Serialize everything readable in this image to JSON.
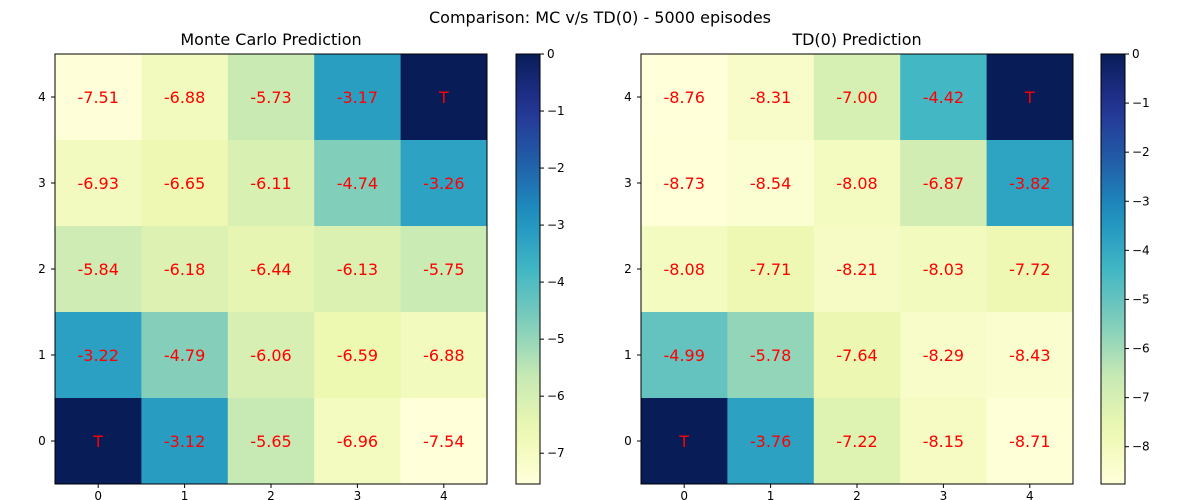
{
  "figure": {
    "title": "Comparison: MC v/s TD(0) - 5000 episodes"
  },
  "chart_data": [
    {
      "type": "heatmap",
      "title": "Monte Carlo Prediction",
      "colormap": "YlGnBu_r",
      "x_ticks": [
        0,
        1,
        2,
        3,
        4
      ],
      "y_ticks": [
        0,
        1,
        2,
        3,
        4
      ],
      "rows_top_to_bottom": [
        4,
        3,
        2,
        1,
        0
      ],
      "values": [
        [
          -7.51,
          -6.88,
          -5.73,
          -3.17,
          0
        ],
        [
          -6.93,
          -6.65,
          -6.11,
          -4.74,
          -3.26
        ],
        [
          -5.84,
          -6.18,
          -6.44,
          -6.13,
          -5.75
        ],
        [
          -3.22,
          -4.79,
          -6.06,
          -6.59,
          -6.88
        ],
        [
          0,
          -3.12,
          -5.65,
          -6.96,
          -7.54
        ]
      ],
      "labels": [
        [
          "-7.51",
          "-6.88",
          "-5.73",
          "-3.17",
          "T"
        ],
        [
          "-6.93",
          "-6.65",
          "-6.11",
          "-4.74",
          "-3.26"
        ],
        [
          "-5.84",
          "-6.18",
          "-6.44",
          "-6.13",
          "-5.75"
        ],
        [
          "-3.22",
          "-4.79",
          "-6.06",
          "-6.59",
          "-6.88"
        ],
        [
          "T",
          "-3.12",
          "-5.65",
          "-6.96",
          "-7.54"
        ]
      ],
      "vmin": -7.54,
      "vmax": 0,
      "colorbar_ticks": [
        0,
        -1,
        -2,
        -3,
        -4,
        -5,
        -6,
        -7
      ],
      "annotation_color": "#ff0000"
    },
    {
      "type": "heatmap",
      "title": "TD(0) Prediction",
      "colormap": "YlGnBu_r",
      "x_ticks": [
        0,
        1,
        2,
        3,
        4
      ],
      "y_ticks": [
        0,
        1,
        2,
        3,
        4
      ],
      "rows_top_to_bottom": [
        4,
        3,
        2,
        1,
        0
      ],
      "values": [
        [
          -8.76,
          -8.31,
          -7.0,
          -4.42,
          0
        ],
        [
          -8.73,
          -8.54,
          -8.08,
          -6.87,
          -3.82
        ],
        [
          -8.08,
          -7.71,
          -8.21,
          -8.03,
          -7.72
        ],
        [
          -4.99,
          -5.78,
          -7.64,
          -8.29,
          -8.43
        ],
        [
          0,
          -3.76,
          -7.22,
          -8.15,
          -8.71
        ]
      ],
      "labels": [
        [
          "-8.76",
          "-8.31",
          "-7.00",
          "-4.42",
          "T"
        ],
        [
          "-8.73",
          "-8.54",
          "-8.08",
          "-6.87",
          "-3.82"
        ],
        [
          "-8.08",
          "-7.71",
          "-8.21",
          "-8.03",
          "-7.72"
        ],
        [
          "-4.99",
          "-5.78",
          "-7.64",
          "-8.29",
          "-8.43"
        ],
        [
          "T",
          "-3.76",
          "-7.22",
          "-8.15",
          "-8.71"
        ]
      ],
      "vmin": -8.76,
      "vmax": 0,
      "colorbar_ticks": [
        0,
        -1,
        -2,
        -3,
        -4,
        -5,
        -6,
        -7,
        -8
      ],
      "annotation_color": "#ff0000"
    }
  ]
}
